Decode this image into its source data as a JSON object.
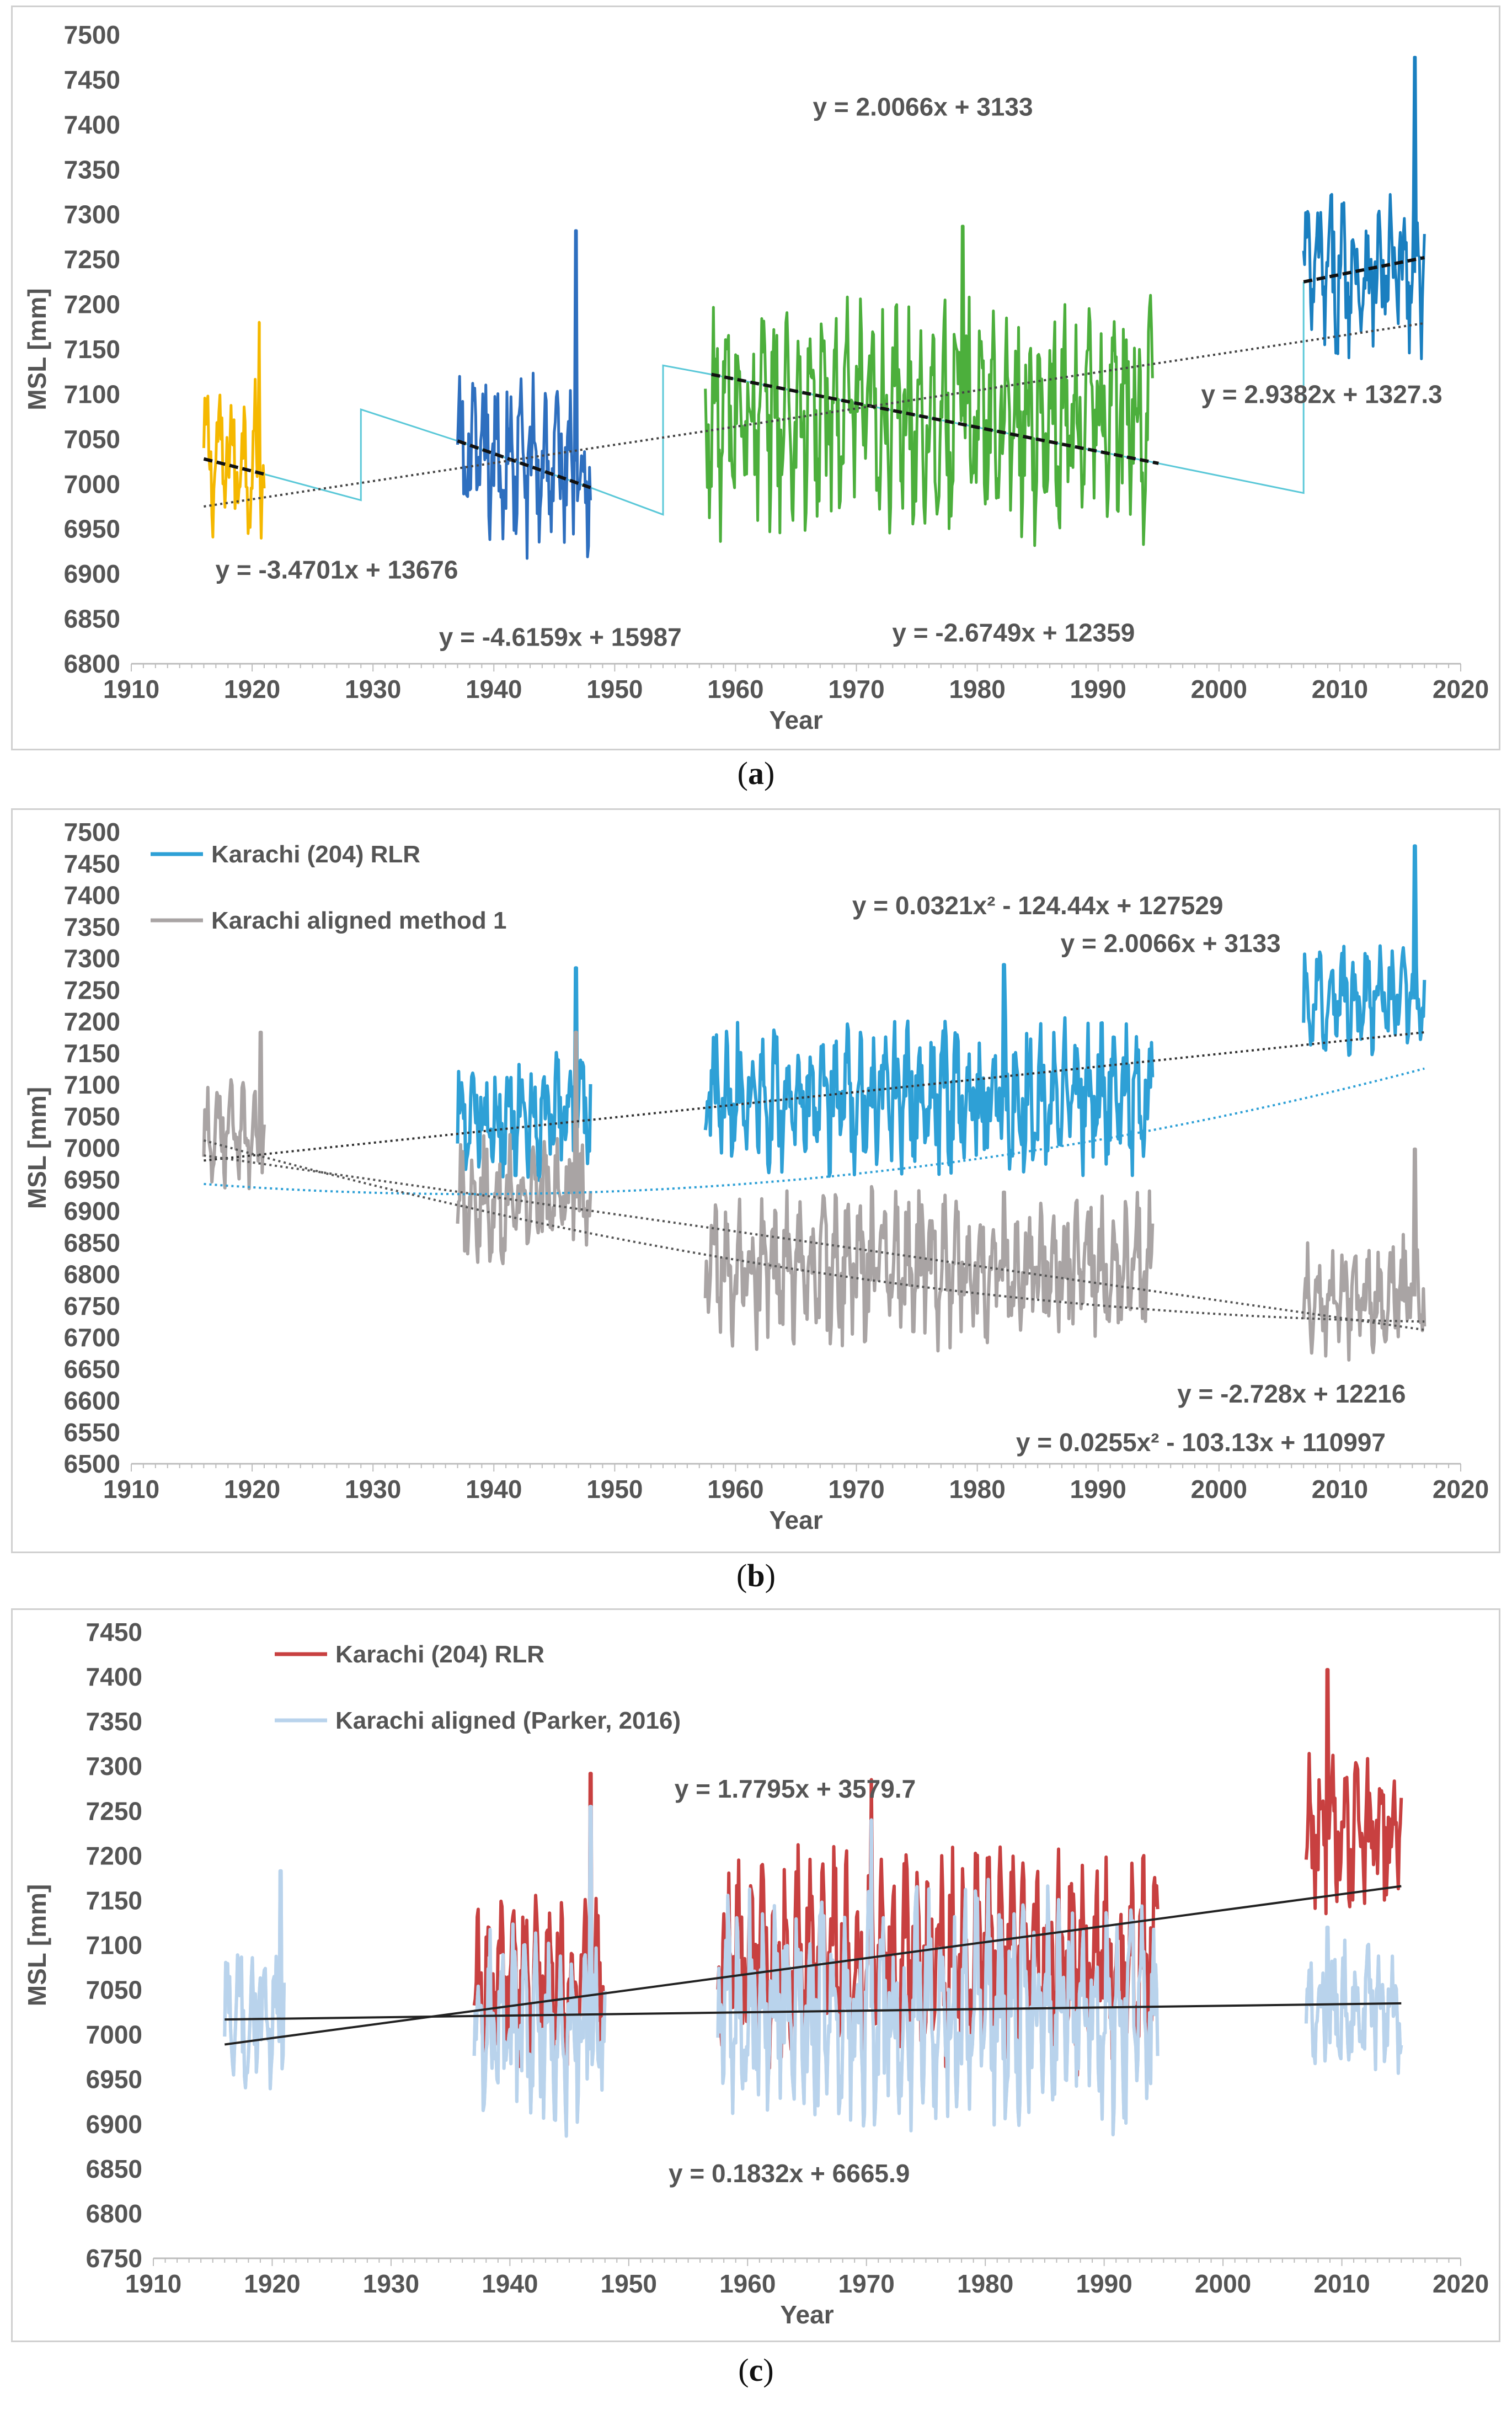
{
  "captions": {
    "a": "a",
    "b": "b",
    "c": "c"
  },
  "chart_data": [
    {
      "id": "a",
      "type": "line",
      "xlabel": "Year",
      "ylabel": "MSL [mm]",
      "xlim": [
        1910,
        2020
      ],
      "ylim": [
        6800,
        7500
      ],
      "xticks": [
        1910,
        1920,
        1930,
        1940,
        1950,
        1960,
        1970,
        1980,
        1990,
        2000,
        2010,
        2020
      ],
      "yticks": [
        6800,
        6850,
        6900,
        6950,
        7000,
        7050,
        7100,
        7150,
        7200,
        7250,
        7300,
        7350,
        7400,
        7450,
        7500
      ],
      "series": [
        {
          "name": "1916-1921",
          "color": "#f5b800",
          "x_start": 1916,
          "x_end": 1921,
          "mean": 7028,
          "amp": 75,
          "spike": [
            1920.6,
            7180
          ],
          "trend": [
            [
              1916,
              7028
            ],
            [
              1921,
              7011
            ]
          ]
        },
        {
          "name": "1937-1948",
          "color": "#2e6fbf",
          "x_start": 1937,
          "x_end": 1948,
          "mean": 7025,
          "amp": 90,
          "spike": [
            1946.8,
            7282
          ],
          "trend": [
            [
              1937,
              7048
            ],
            [
              1948,
              6996
            ]
          ]
        },
        {
          "name": "1958-1994",
          "color": "#4caf3c",
          "x_start": 1957.5,
          "x_end": 1994.5,
          "mean": 7075,
          "amp": 120,
          "spike": [
            1978.8,
            7287
          ],
          "trend": [
            [
              1958,
              7122
            ],
            [
              1995,
              7023
            ]
          ]
        },
        {
          "name": "2007-2017",
          "color": "#1a7fc0",
          "x_start": 2007,
          "x_end": 2017,
          "mean": 7235,
          "amp": 80,
          "spike": [
            2016.2,
            7475
          ],
          "trend": [
            [
              2007,
              7225
            ],
            [
              2017,
              7252
            ]
          ]
        }
      ],
      "gap_line": {
        "color": "#5bc8d8",
        "points": [
          [
            1921,
            7011
          ],
          [
            1929,
            6982
          ],
          [
            1929,
            7083
          ],
          [
            1937,
            7048
          ],
          [
            1948,
            6996
          ],
          [
            1954,
            6966
          ],
          [
            1954,
            7132
          ],
          [
            1958,
            7122
          ],
          [
            1995,
            7023
          ],
          [
            2007,
            6990
          ],
          [
            2007,
            7225
          ]
        ]
      },
      "overall_trend": {
        "color": "#444444",
        "points": [
          [
            1916,
            6975
          ],
          [
            2017,
            7179
          ]
        ]
      },
      "annotations": [
        {
          "text": "y = 2.0066x + 3133",
          "x": 1975.5,
          "y": 7410
        },
        {
          "text": "y = 2.9382x + 1327.3",
          "x": 2008.5,
          "y": 7090
        },
        {
          "text": "y = -3.4701x + 13676",
          "x": 1927,
          "y": 6895
        },
        {
          "text": "y = -4.6159x + 15987",
          "x": 1945.5,
          "y": 6820
        },
        {
          "text": "y = -2.6749x + 12359",
          "x": 1983,
          "y": 6825
        }
      ]
    },
    {
      "id": "b",
      "type": "line",
      "xlabel": "Year",
      "ylabel": "MSL [mm]",
      "xlim": [
        1910,
        2020
      ],
      "ylim": [
        6500,
        7500
      ],
      "xticks": [
        1910,
        1920,
        1930,
        1940,
        1950,
        1960,
        1970,
        1980,
        1990,
        2000,
        2010,
        2020
      ],
      "yticks": [
        6500,
        6550,
        6600,
        6650,
        6700,
        6750,
        6800,
        6850,
        6900,
        6950,
        7000,
        7050,
        7100,
        7150,
        7200,
        7250,
        7300,
        7350,
        7400,
        7450,
        7500
      ],
      "legend": [
        {
          "label": "Karachi (204) RLR",
          "color": "#2ea0d6"
        },
        {
          "label": "Karachi aligned method 1",
          "color": "#a9a4a4"
        }
      ],
      "series": [
        {
          "name": "Karachi (204) RLR",
          "color": "#2ea0d6",
          "segments": [
            [
              1937,
              1948,
              7050,
              90,
              [
                1946.8,
                7285
              ]
            ],
            [
              1957.5,
              1994.5,
              7080,
              110,
              [
                1982.2,
                7290
              ]
            ],
            [
              2007,
              2017,
              7235,
              80,
              [
                2016.2,
                7478
              ]
            ]
          ]
        },
        {
          "name": "Karachi aligned method 1",
          "color": "#a9a4a4",
          "segments": [
            [
              1916,
              1921,
              7020,
              75,
              [
                1920.7,
                7183
              ]
            ],
            [
              1937,
              1948,
              6920,
              90,
              [
                1946.8,
                7183
              ]
            ],
            [
              1957.5,
              1994.5,
              6810,
              110,
              [
                1982.2,
                6930
              ]
            ],
            [
              2007,
              2017,
              6765,
              85,
              [
                2016.2,
                6998
              ]
            ]
          ]
        }
      ],
      "trends": [
        {
          "label": "y = 2.0066x + 3133",
          "style": "linear",
          "color": "#333333",
          "points": [
            [
              1916,
              6980
            ],
            [
              2017,
              7183
            ]
          ]
        },
        {
          "label": "y = 0.0321x² - 124.44x + 127529",
          "style": "quadratic",
          "color": "#2ea0d6",
          "coef": [
            0.0321,
            -124.44,
            127529
          ],
          "range": [
            1916,
            2017
          ]
        },
        {
          "label": "y = -2.728x + 12216",
          "style": "linear",
          "color": "#555555",
          "points": [
            [
              1916,
              6988
            ],
            [
              2017,
              6712
            ]
          ]
        },
        {
          "label": "y = 0.0255x² - 103.13x + 110997",
          "style": "quadratic",
          "color": "#555555",
          "coef": [
            0.0255,
            -103.13,
            110997
          ],
          "range": [
            1916,
            2017
          ]
        }
      ],
      "annotations": [
        {
          "text": "y = 0.0321x² - 124.44x + 127529",
          "x": 1985,
          "y": 7370
        },
        {
          "text": "y = 2.0066x + 3133",
          "x": 1996,
          "y": 7310
        },
        {
          "text": "y = -2.728x + 12216",
          "x": 2006,
          "y": 6597
        },
        {
          "text": "y = 0.0255x² - 103.13x + 110997",
          "x": 1998.5,
          "y": 6520
        }
      ]
    },
    {
      "id": "c",
      "type": "line",
      "xlabel": "Year",
      "ylabel": "MSL [mm]",
      "xlim": [
        1910,
        2020
      ],
      "ylim": [
        6750,
        7450
      ],
      "xticks": [
        1910,
        1920,
        1930,
        1940,
        1950,
        1960,
        1970,
        1980,
        1990,
        2000,
        2010,
        2020
      ],
      "yticks": [
        6750,
        6800,
        6850,
        6900,
        6950,
        7000,
        7050,
        7100,
        7150,
        7200,
        7250,
        7300,
        7350,
        7400,
        7450
      ],
      "legend": [
        {
          "label": "Karachi (204) RLR",
          "color": "#c84040"
        },
        {
          "label": "Karachi aligned (Parker, 2016)",
          "color": "#b9d3ec"
        }
      ],
      "series": [
        {
          "name": "Karachi (204) RLR",
          "color": "#c84040",
          "segments": [
            [
              1937,
              1948,
              7060,
              85,
              [
                1946.8,
                7292
              ]
            ],
            [
              1957.5,
              1994.5,
              7085,
              110,
              [
                1970.4,
                7285
              ]
            ],
            [
              2007,
              2015,
              7220,
              80,
              [
                2008.8,
                7408
              ]
            ]
          ]
        },
        {
          "name": "Karachi aligned (Parker, 2016)",
          "color": "#b9d3ec",
          "segments": [
            [
              1916,
              1921,
              7020,
              75,
              [
                1920.7,
                7183
              ]
            ],
            [
              1937,
              1948,
              7005,
              100,
              [
                1946.8,
                7255
              ]
            ],
            [
              1957.5,
              1994.5,
              7030,
              120,
              [
                1970.4,
                7240
              ]
            ],
            [
              2007,
              2015,
              7030,
              65,
              [
                2008.8,
                7120
              ]
            ]
          ]
        }
      ],
      "trends": [
        {
          "label": "y = 1.7795x + 3579.7",
          "color": "#222222",
          "points": [
            [
              1916,
              6989
            ],
            [
              2015,
              7166
            ]
          ]
        },
        {
          "label": "y = 0.1832x + 6665.9",
          "color": "#222222",
          "points": [
            [
              1916,
              7017
            ],
            [
              2015,
              7035
            ]
          ]
        }
      ],
      "annotations": [
        {
          "text": "y = 1.7795x + 3579.7",
          "x": 1964,
          "y": 7265
        },
        {
          "text": "y = 0.1832x + 6665.9",
          "x": 1963.5,
          "y": 6835
        }
      ]
    }
  ]
}
